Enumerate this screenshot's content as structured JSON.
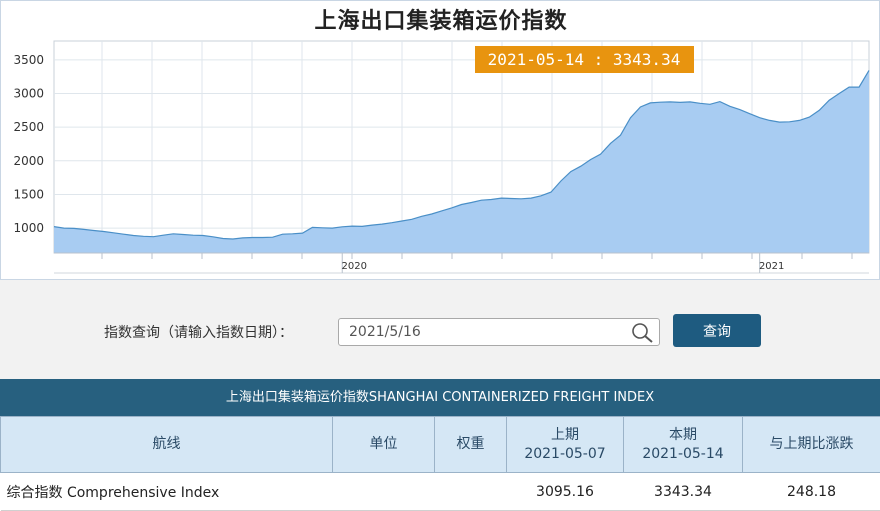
{
  "chart": {
    "title": "上海出口集装箱运价指数",
    "tooltip": "2021-05-14 : 3343.34",
    "colors": {
      "fill": "#a8ccf2",
      "line": "#4a8fc7",
      "tooltip_bg": "#e8940f",
      "tooltip_text": "#ffffff"
    }
  },
  "chart_data": {
    "type": "area",
    "title": "上海出口集装箱运价指数",
    "xlabel": "",
    "ylabel": "",
    "ylim": [
      630,
      3780
    ],
    "yticks": [
      1000,
      1500,
      2000,
      2500,
      3000,
      3500
    ],
    "xticks": [
      {
        "index": 29,
        "label": "2020"
      },
      {
        "index": 71,
        "label": "2021"
      }
    ],
    "grid": true,
    "values": [
      1022,
      1000,
      995,
      980,
      965,
      950,
      930,
      910,
      890,
      878,
      872,
      895,
      915,
      905,
      895,
      890,
      870,
      845,
      838,
      855,
      860,
      860,
      865,
      910,
      915,
      925,
      1010,
      1005,
      1000,
      1020,
      1030,
      1025,
      1045,
      1060,
      1080,
      1105,
      1130,
      1175,
      1210,
      1255,
      1300,
      1350,
      1380,
      1415,
      1425,
      1445,
      1440,
      1435,
      1445,
      1480,
      1535,
      1700,
      1840,
      1920,
      2020,
      2100,
      2260,
      2380,
      2640,
      2800,
      2860,
      2870,
      2875,
      2868,
      2875,
      2855,
      2840,
      2880,
      2810,
      2760,
      2700,
      2640,
      2600,
      2575,
      2580,
      2600,
      2650,
      2750,
      2900,
      3000,
      3095,
      3095,
      3343
    ]
  },
  "query": {
    "label": "指数查询（请输入指数日期）：",
    "date_value": "2021/5/16",
    "button_label": "查询"
  },
  "table": {
    "title": "上海出口集装箱运价指数SHANGHAI CONTAINERIZED FREIGHT INDEX",
    "headers": {
      "route": "航线",
      "unit": "单位",
      "weight": "权重",
      "prev_label": "上期",
      "prev_date": "2021-05-07",
      "curr_label": "本期",
      "curr_date": "2021-05-14",
      "change": "与上期比涨跌"
    },
    "rows": [
      {
        "route": "综合指数 Comprehensive Index",
        "unit": "",
        "weight": "",
        "prev": "3095.16",
        "curr": "3343.34",
        "change": "248.18"
      }
    ]
  }
}
